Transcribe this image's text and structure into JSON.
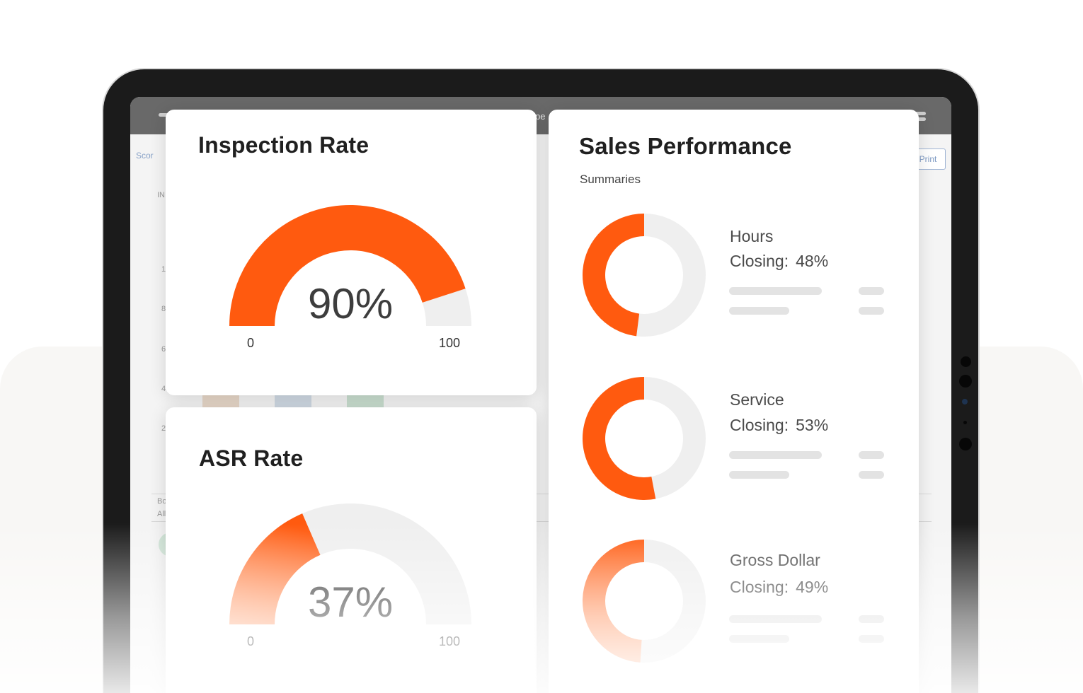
{
  "screen": {
    "tab_text": "pe",
    "nav_label": "Scor",
    "print_label": "Print",
    "axis_labels": [
      "IN",
      "1",
      "8",
      "6",
      "4",
      "2",
      "Bo",
      "All"
    ]
  },
  "inspection_rate": {
    "title": "Inspection Rate",
    "value": 90,
    "value_label": "90%",
    "min_label": "0",
    "max_label": "100"
  },
  "asr_rate": {
    "title": "ASR Rate",
    "value": 37,
    "value_label": "37%",
    "min_label": "0",
    "max_label": "100"
  },
  "sales_performance": {
    "title": "Sales Performance",
    "subtitle": "Summaries",
    "metrics": [
      {
        "name": "Hours",
        "closing_label": "Closing:",
        "value": 48,
        "value_label": "48%"
      },
      {
        "name": "Service",
        "closing_label": "Closing:",
        "value": 53,
        "value_label": "53%"
      },
      {
        "name": "Gross Dollar",
        "closing_label": "Closing:",
        "value": 49,
        "value_label": "49%"
      }
    ]
  },
  "colors": {
    "accent": "#ff5a0f",
    "track": "#efefef",
    "accent_light": "#ffb38d"
  }
}
